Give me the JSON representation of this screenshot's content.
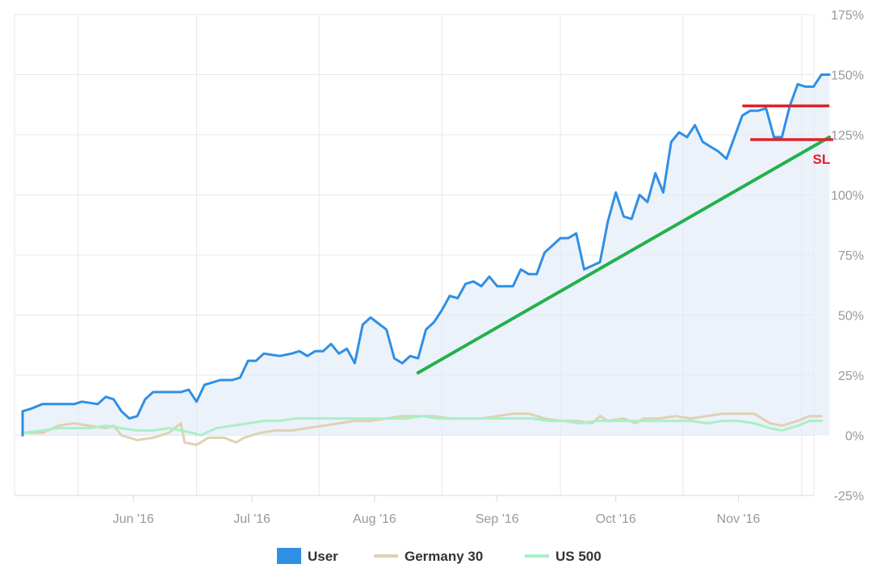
{
  "chart_data": {
    "type": "line",
    "title": "",
    "xlabel": "",
    "ylabel": "",
    "x_tick_labels": [
      "Jun '16",
      "Jul '16",
      "Aug '16",
      "Sep '16",
      "Oct '16",
      "Nov '16"
    ],
    "y_tick_labels": [
      "175%",
      "150%",
      "125%",
      "100%",
      "75%",
      "50%",
      "25%",
      "0%",
      "-25%"
    ],
    "y_ticks": [
      175,
      150,
      125,
      100,
      75,
      50,
      25,
      0,
      -25
    ],
    "ylim": [
      -25,
      175
    ],
    "x_start": "2016-05-18",
    "x_end": "2016-11-30",
    "grid": true,
    "legend_position": "bottom-center",
    "series": [
      {
        "name": "User",
        "color": "#2f8fe5",
        "fill": true,
        "points": [
          [
            "2016-05-18",
            0
          ],
          [
            "2016-05-18",
            10
          ],
          [
            "2016-05-20",
            11
          ],
          [
            "2016-05-23",
            13
          ],
          [
            "2016-05-27",
            13
          ],
          [
            "2016-05-31",
            13
          ],
          [
            "2016-06-02",
            14
          ],
          [
            "2016-06-06",
            13
          ],
          [
            "2016-06-08",
            16
          ],
          [
            "2016-06-10",
            15
          ],
          [
            "2016-06-12",
            10
          ],
          [
            "2016-06-14",
            7
          ],
          [
            "2016-06-16",
            8
          ],
          [
            "2016-06-18",
            15
          ],
          [
            "2016-06-20",
            18
          ],
          [
            "2016-06-24",
            18
          ],
          [
            "2016-06-27",
            18
          ],
          [
            "2016-06-29",
            19
          ],
          [
            "2016-07-01",
            14
          ],
          [
            "2016-07-03",
            21
          ],
          [
            "2016-07-07",
            23
          ],
          [
            "2016-07-10",
            23
          ],
          [
            "2016-07-12",
            24
          ],
          [
            "2016-07-14",
            31
          ],
          [
            "2016-07-16",
            31
          ],
          [
            "2016-07-18",
            34
          ],
          [
            "2016-07-22",
            33
          ],
          [
            "2016-07-25",
            34
          ],
          [
            "2016-07-27",
            35
          ],
          [
            "2016-07-29",
            33
          ],
          [
            "2016-07-31",
            35
          ],
          [
            "2016-08-02",
            35
          ],
          [
            "2016-08-04",
            38
          ],
          [
            "2016-08-06",
            34
          ],
          [
            "2016-08-08",
            36
          ],
          [
            "2016-08-10",
            30
          ],
          [
            "2016-08-12",
            46
          ],
          [
            "2016-08-14",
            49
          ],
          [
            "2016-08-18",
            44
          ],
          [
            "2016-08-20",
            32
          ],
          [
            "2016-08-22",
            30
          ],
          [
            "2016-08-24",
            33
          ],
          [
            "2016-08-26",
            32
          ],
          [
            "2016-08-28",
            44
          ],
          [
            "2016-08-30",
            47
          ],
          [
            "2016-09-01",
            52
          ],
          [
            "2016-09-03",
            58
          ],
          [
            "2016-09-05",
            57
          ],
          [
            "2016-09-07",
            63
          ],
          [
            "2016-09-09",
            64
          ],
          [
            "2016-09-11",
            62
          ],
          [
            "2016-09-13",
            66
          ],
          [
            "2016-09-15",
            62
          ],
          [
            "2016-09-17",
            62
          ],
          [
            "2016-09-19",
            62
          ],
          [
            "2016-09-21",
            69
          ],
          [
            "2016-09-23",
            67
          ],
          [
            "2016-09-25",
            67
          ],
          [
            "2016-09-27",
            76
          ],
          [
            "2016-09-29",
            79
          ],
          [
            "2016-10-01",
            82
          ],
          [
            "2016-10-03",
            82
          ],
          [
            "2016-10-05",
            84
          ],
          [
            "2016-10-07",
            69
          ],
          [
            "2016-10-11",
            72
          ],
          [
            "2016-10-13",
            89
          ],
          [
            "2016-10-15",
            101
          ],
          [
            "2016-10-17",
            91
          ],
          [
            "2016-10-19",
            90
          ],
          [
            "2016-10-21",
            100
          ],
          [
            "2016-10-23",
            97
          ],
          [
            "2016-10-25",
            109
          ],
          [
            "2016-10-27",
            101
          ],
          [
            "2016-10-29",
            122
          ],
          [
            "2016-10-31",
            126
          ],
          [
            "2016-11-02",
            124
          ],
          [
            "2016-11-04",
            129
          ],
          [
            "2016-11-06",
            122
          ],
          [
            "2016-11-08",
            120
          ],
          [
            "2016-11-10",
            118
          ],
          [
            "2016-11-12",
            115
          ],
          [
            "2016-11-14",
            124
          ],
          [
            "2016-11-16",
            133
          ],
          [
            "2016-11-18",
            135
          ],
          [
            "2016-11-20",
            135
          ],
          [
            "2016-11-22",
            136
          ],
          [
            "2016-11-24",
            124
          ],
          [
            "2016-11-26",
            124
          ],
          [
            "2016-11-28",
            137
          ],
          [
            "2016-11-30",
            146
          ],
          [
            "2016-12-02",
            145
          ],
          [
            "2016-12-04",
            145
          ],
          [
            "2016-12-06",
            150
          ],
          [
            "2016-12-08",
            150
          ]
        ]
      },
      {
        "name": "Germany 30",
        "color": "#ded2b4",
        "fill": false,
        "points": [
          [
            "2016-05-18",
            1
          ],
          [
            "2016-05-23",
            1
          ],
          [
            "2016-05-27",
            4
          ],
          [
            "2016-05-31",
            5
          ],
          [
            "2016-06-04",
            4
          ],
          [
            "2016-06-08",
            3
          ],
          [
            "2016-06-10",
            4
          ],
          [
            "2016-06-12",
            0
          ],
          [
            "2016-06-16",
            -2
          ],
          [
            "2016-06-20",
            -1
          ],
          [
            "2016-06-24",
            1
          ],
          [
            "2016-06-27",
            5
          ],
          [
            "2016-06-28",
            -3
          ],
          [
            "2016-07-01",
            -4
          ],
          [
            "2016-07-04",
            -1
          ],
          [
            "2016-07-08",
            -1
          ],
          [
            "2016-07-11",
            -3
          ],
          [
            "2016-07-13",
            -1
          ],
          [
            "2016-07-17",
            1
          ],
          [
            "2016-07-21",
            2
          ],
          [
            "2016-07-25",
            2
          ],
          [
            "2016-07-29",
            3
          ],
          [
            "2016-08-02",
            4
          ],
          [
            "2016-08-06",
            5
          ],
          [
            "2016-08-10",
            6
          ],
          [
            "2016-08-14",
            6
          ],
          [
            "2016-08-18",
            7
          ],
          [
            "2016-08-22",
            8
          ],
          [
            "2016-08-26",
            8
          ],
          [
            "2016-08-30",
            8
          ],
          [
            "2016-09-03",
            7
          ],
          [
            "2016-09-07",
            7
          ],
          [
            "2016-09-11",
            7
          ],
          [
            "2016-09-15",
            8
          ],
          [
            "2016-09-19",
            9
          ],
          [
            "2016-09-23",
            9
          ],
          [
            "2016-09-27",
            7
          ],
          [
            "2016-10-01",
            6
          ],
          [
            "2016-10-05",
            6
          ],
          [
            "2016-10-09",
            5
          ],
          [
            "2016-10-11",
            8
          ],
          [
            "2016-10-13",
            6
          ],
          [
            "2016-10-17",
            7
          ],
          [
            "2016-10-20",
            5
          ],
          [
            "2016-10-22",
            7
          ],
          [
            "2016-10-26",
            7
          ],
          [
            "2016-10-30",
            8
          ],
          [
            "2016-11-03",
            7
          ],
          [
            "2016-11-07",
            8
          ],
          [
            "2016-11-11",
            9
          ],
          [
            "2016-11-15",
            9
          ],
          [
            "2016-11-19",
            9
          ],
          [
            "2016-11-23",
            5
          ],
          [
            "2016-11-26",
            4
          ],
          [
            "2016-11-30",
            6
          ],
          [
            "2016-12-03",
            8
          ],
          [
            "2016-12-06",
            8
          ]
        ]
      },
      {
        "name": "US 500",
        "color": "#a8f0c7",
        "fill": false,
        "points": [
          [
            "2016-05-18",
            1
          ],
          [
            "2016-05-23",
            2
          ],
          [
            "2016-05-27",
            3
          ],
          [
            "2016-05-31",
            3
          ],
          [
            "2016-06-04",
            3
          ],
          [
            "2016-06-08",
            4
          ],
          [
            "2016-06-12",
            3
          ],
          [
            "2016-06-16",
            2
          ],
          [
            "2016-06-20",
            2
          ],
          [
            "2016-06-24",
            3
          ],
          [
            "2016-06-27",
            2
          ],
          [
            "2016-06-30",
            1
          ],
          [
            "2016-07-02",
            0
          ],
          [
            "2016-07-06",
            3
          ],
          [
            "2016-07-10",
            4
          ],
          [
            "2016-07-14",
            5
          ],
          [
            "2016-07-18",
            6
          ],
          [
            "2016-07-22",
            6
          ],
          [
            "2016-07-26",
            7
          ],
          [
            "2016-07-30",
            7
          ],
          [
            "2016-08-03",
            7
          ],
          [
            "2016-08-07",
            7
          ],
          [
            "2016-08-11",
            7
          ],
          [
            "2016-08-15",
            7
          ],
          [
            "2016-08-19",
            7
          ],
          [
            "2016-08-23",
            7
          ],
          [
            "2016-08-27",
            8
          ],
          [
            "2016-08-31",
            7
          ],
          [
            "2016-09-04",
            7
          ],
          [
            "2016-09-08",
            7
          ],
          [
            "2016-09-12",
            7
          ],
          [
            "2016-09-16",
            7
          ],
          [
            "2016-09-20",
            7
          ],
          [
            "2016-09-24",
            7
          ],
          [
            "2016-09-28",
            6
          ],
          [
            "2016-10-02",
            6
          ],
          [
            "2016-10-06",
            5
          ],
          [
            "2016-10-10",
            6
          ],
          [
            "2016-10-14",
            6
          ],
          [
            "2016-10-18",
            6
          ],
          [
            "2016-10-22",
            6
          ],
          [
            "2016-10-26",
            6
          ],
          [
            "2016-10-30",
            6
          ],
          [
            "2016-11-03",
            6
          ],
          [
            "2016-11-07",
            5
          ],
          [
            "2016-11-11",
            6
          ],
          [
            "2016-11-15",
            6
          ],
          [
            "2016-11-19",
            5
          ],
          [
            "2016-11-23",
            3
          ],
          [
            "2016-11-26",
            2
          ],
          [
            "2016-11-30",
            4
          ],
          [
            "2016-12-03",
            6
          ],
          [
            "2016-12-06",
            6
          ]
        ]
      }
    ],
    "annotations": [
      {
        "kind": "trend-line",
        "color": "#22b14c",
        "from": [
          "2016-08-26",
          26
        ],
        "to": [
          "2016-12-08",
          124
        ]
      },
      {
        "kind": "horizontal-line",
        "color": "#e0202a",
        "y": 137,
        "from": "2016-11-16",
        "to": "2016-12-08"
      },
      {
        "kind": "horizontal-line",
        "color": "#e0202a",
        "y": 123,
        "from": "2016-11-18",
        "to": "2016-12-09"
      },
      {
        "kind": "label",
        "text": "SL",
        "color": "#e0202a",
        "at": [
          "2016-12-06",
          115
        ]
      }
    ]
  }
}
